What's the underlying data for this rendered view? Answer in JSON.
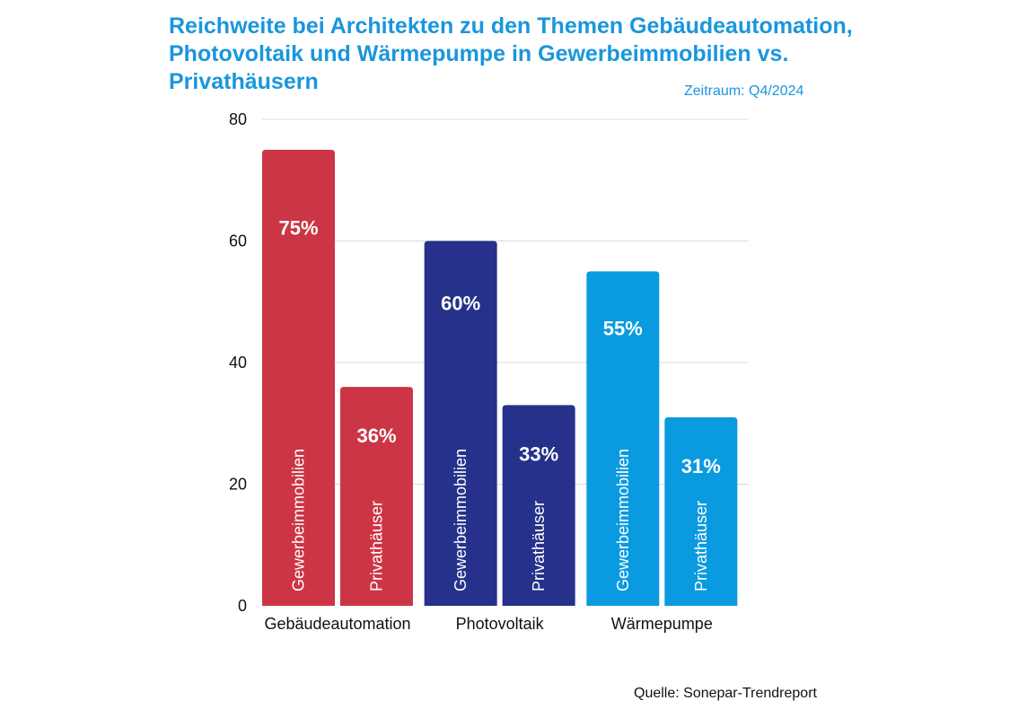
{
  "title_lines": [
    "Reichweite bei Architekten zu den Themen Gebäudeautomation,",
    "Photovoltaik und Wärmepumpe in Gewerbeimmobilien vs.",
    "Privathäusern"
  ],
  "period": "Zeitraum: Q4/2024",
  "source": "Quelle: Sonepar-Trendreport",
  "chart_data": {
    "type": "bar",
    "categories": [
      "Gebäudeautomation",
      "Photovoltaik",
      "Wärmepumpe"
    ],
    "series": [
      {
        "name": "Gewerbeimmobilien",
        "values": [
          75,
          60,
          55
        ]
      },
      {
        "name": "Privathäuser",
        "values": [
          36,
          33,
          31
        ]
      }
    ],
    "value_labels": [
      [
        "75%",
        "36%"
      ],
      [
        "60%",
        "33%"
      ],
      [
        "55%",
        "31%"
      ]
    ],
    "colors": [
      "#cc3545",
      "#25318a",
      "#0a9ae0"
    ],
    "ylim": [
      0,
      80
    ],
    "yticks": [
      0,
      20,
      40,
      60,
      80
    ],
    "grid": true,
    "legend": "labels inside bars"
  }
}
